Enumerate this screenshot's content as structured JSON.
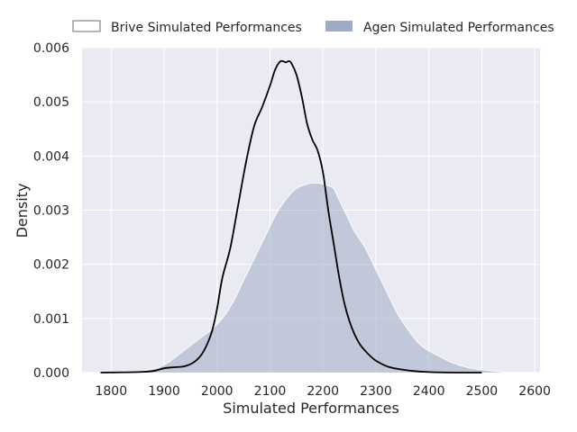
{
  "chart_data": {
    "type": "area",
    "title": "",
    "xlabel": "Simulated Performances",
    "ylabel": "Density",
    "xlim": [
      1745,
      2610
    ],
    "ylim": [
      0,
      0.006
    ],
    "x_ticks": [
      1800,
      1900,
      2000,
      2100,
      2200,
      2300,
      2400,
      2500,
      2600
    ],
    "x_tick_labels": [
      "1800",
      "1900",
      "2000",
      "2100",
      "2200",
      "2300",
      "2400",
      "2500",
      "2600"
    ],
    "y_ticks": [
      0,
      0.001,
      0.002,
      0.003,
      0.004,
      0.005,
      0.006
    ],
    "y_tick_labels": [
      "0.000",
      "0.001",
      "0.002",
      "0.003",
      "0.004",
      "0.005",
      "0.006"
    ],
    "grid": true,
    "legend_position": "top",
    "series": [
      {
        "name": "Brive Simulated Performances",
        "style": "line",
        "color": "#000000",
        "x": [
          1780,
          1850,
          1880,
          1900,
          1920,
          1940,
          1960,
          1975,
          1990,
          2000,
          2010,
          2025,
          2040,
          2055,
          2070,
          2085,
          2100,
          2110,
          2120,
          2130,
          2135,
          2140,
          2150,
          2160,
          2170,
          2180,
          2190,
          2200,
          2210,
          2220,
          2230,
          2240,
          2250,
          2260,
          2270,
          2280,
          2290,
          2300,
          2320,
          2340,
          2370,
          2400,
          2450,
          2500
        ],
        "y": [
          0,
          1e-05,
          3e-05,
          8e-05,
          0.0001,
          0.00012,
          0.00022,
          0.0004,
          0.00075,
          0.00118,
          0.00175,
          0.0023,
          0.0031,
          0.0039,
          0.00455,
          0.0049,
          0.0053,
          0.0056,
          0.00575,
          0.00573,
          0.00575,
          0.00572,
          0.0055,
          0.0051,
          0.0046,
          0.0043,
          0.0041,
          0.0037,
          0.003,
          0.0024,
          0.0018,
          0.0013,
          0.00095,
          0.0007,
          0.00052,
          0.0004,
          0.0003,
          0.00022,
          0.00012,
          7e-05,
          3e-05,
          1e-05,
          0,
          0
        ]
      },
      {
        "name": "Agen Simulated Performances",
        "style": "filled",
        "color": "#9eabc5",
        "x": [
          1780,
          1820,
          1850,
          1870,
          1890,
          1910,
          1930,
          1950,
          1970,
          1990,
          2010,
          2030,
          2050,
          2070,
          2090,
          2110,
          2130,
          2150,
          2170,
          2180,
          2190,
          2200,
          2210,
          2220,
          2230,
          2240,
          2250,
          2260,
          2280,
          2300,
          2320,
          2340,
          2360,
          2380,
          2400,
          2420,
          2440,
          2460,
          2480,
          2500,
          2520,
          2540,
          2570
        ],
        "y": [
          0,
          5e-06,
          2e-05,
          5e-05,
          0.0001,
          0.0002,
          0.00035,
          0.0005,
          0.00065,
          0.0008,
          0.001,
          0.0013,
          0.0017,
          0.0021,
          0.0025,
          0.0029,
          0.0032,
          0.0034,
          0.00348,
          0.0035,
          0.0035,
          0.00348,
          0.00345,
          0.0034,
          0.0032,
          0.003,
          0.0028,
          0.0026,
          0.0023,
          0.0019,
          0.0015,
          0.0011,
          0.0008,
          0.00055,
          0.0004,
          0.0003,
          0.0002,
          0.00013,
          8e-05,
          5e-05,
          3e-05,
          1e-05,
          0
        ]
      }
    ]
  }
}
